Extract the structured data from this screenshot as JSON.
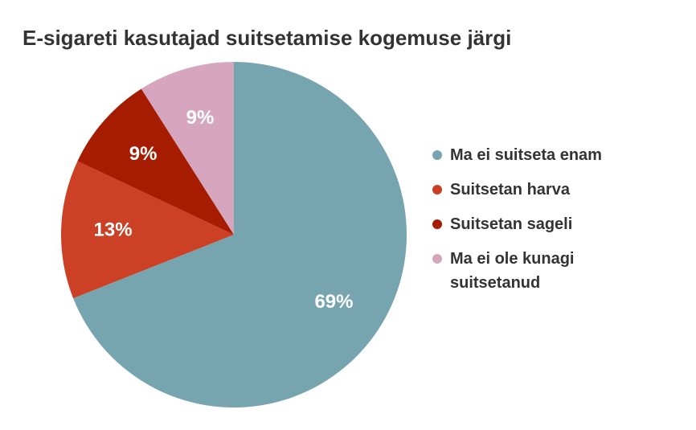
{
  "chart_data": {
    "type": "pie",
    "title": "E-sigareti kasutajad suitsetamise kogemuse järgi",
    "categories": [
      "Ma ei suitseta enam",
      "Suitsetan harva",
      "Suitsetan sageli",
      "Ma ei ole kunagi suitsetanud"
    ],
    "values": [
      69,
      13,
      9,
      9
    ],
    "value_labels": [
      "69%",
      "13%",
      "9%",
      "9%"
    ],
    "colors": [
      "#76a5af",
      "#cc4125",
      "#a61c00",
      "#d5a6bd"
    ],
    "legend": "right"
  }
}
